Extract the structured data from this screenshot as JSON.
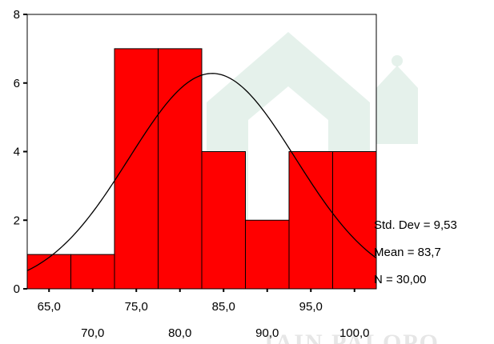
{
  "chart_data": {
    "type": "bar",
    "subtype": "histogram-with-normal-curve",
    "bins": [
      {
        "from": 62.5,
        "to": 67.5,
        "count": 1
      },
      {
        "from": 67.5,
        "to": 72.5,
        "count": 1
      },
      {
        "from": 72.5,
        "to": 77.5,
        "count": 7
      },
      {
        "from": 77.5,
        "to": 82.5,
        "count": 7
      },
      {
        "from": 82.5,
        "to": 87.5,
        "count": 4
      },
      {
        "from": 87.5,
        "to": 92.5,
        "count": 2
      },
      {
        "from": 92.5,
        "to": 97.5,
        "count": 4
      },
      {
        "from": 97.5,
        "to": 102.5,
        "count": 4
      }
    ],
    "xlim": [
      62.5,
      102.5
    ],
    "ylim": [
      0,
      8
    ],
    "y_ticks": [
      "0",
      "2",
      "4",
      "6",
      "8"
    ],
    "y_tick_values": [
      0,
      2,
      4,
      6,
      8
    ],
    "x_tick_values": [
      65,
      70,
      75,
      80,
      85,
      90,
      95,
      100
    ],
    "x_tick_labels_top": [
      "65,0",
      "75,0",
      "85,0",
      "95,0"
    ],
    "x_tick_labels_bottom": [
      "70,0",
      "80,0",
      "90,0",
      "100,0"
    ],
    "normal_curve": {
      "mean": 83.7,
      "std_dev": 9.53,
      "n": 30,
      "bin_width": 5
    },
    "stats": {
      "std_dev": "Std. Dev = 9,53",
      "mean": "Mean = 83,7",
      "n": "N = 30,00"
    },
    "bar_color": "#ff0000",
    "grid": false
  },
  "watermark": {
    "text": "IAIN PALOPO",
    "color": "#cfe6da"
  }
}
